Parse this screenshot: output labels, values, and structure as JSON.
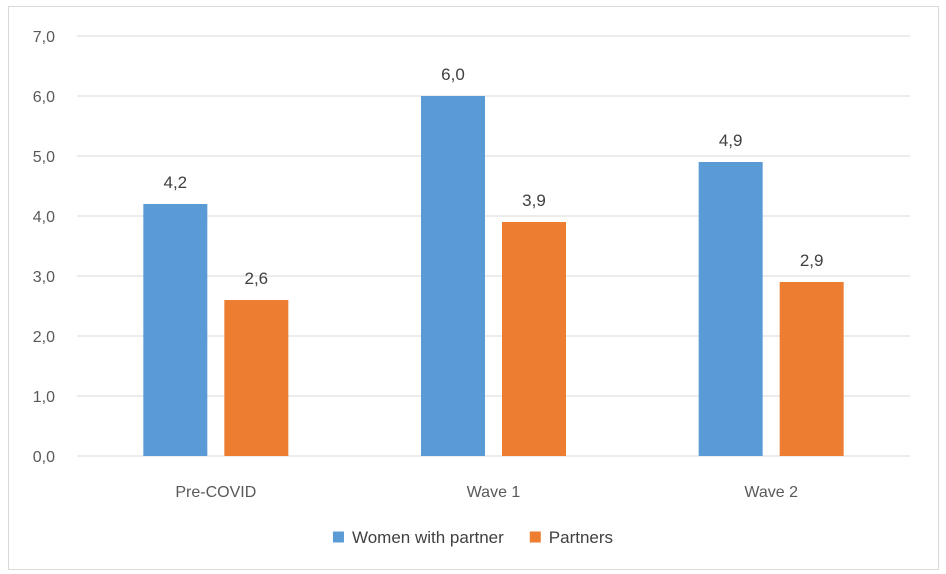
{
  "chart_data": {
    "type": "bar",
    "title": "",
    "xlabel": "",
    "ylabel": "",
    "categories": [
      "Pre-COVID",
      "Wave 1",
      "Wave 2"
    ],
    "series": [
      {
        "name": "Women with partner",
        "values": [
          4.2,
          6.0,
          4.9
        ],
        "labels": [
          "4,2",
          "6,0",
          "4,9"
        ],
        "color": "#5b9bd5"
      },
      {
        "name": "Partners",
        "values": [
          2.6,
          3.9,
          2.9
        ],
        "labels": [
          "2,6",
          "3,9",
          "2,9"
        ],
        "color": "#ed7d31"
      }
    ],
    "ylim": [
      0,
      7
    ],
    "yticks": [
      0,
      1,
      2,
      3,
      4,
      5,
      6,
      7
    ],
    "ytick_labels": [
      "0,0",
      "1,0",
      "2,0",
      "3,0",
      "4,0",
      "5,0",
      "6,0",
      "7,0"
    ],
    "grid": true,
    "legend_position": "bottom"
  }
}
